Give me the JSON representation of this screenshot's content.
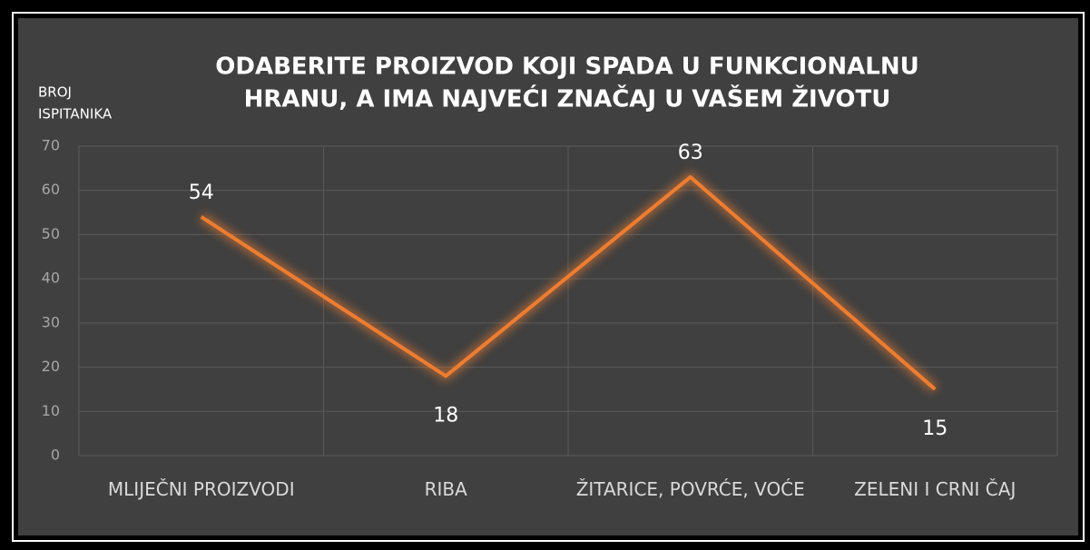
{
  "chart_data": {
    "type": "line",
    "title": [
      "ODABERITE PROIZVOD KOJI SPADA U FUNKCIONALNU",
      "HRANU, A IMA NAJVEĆI ZNAČAJ U VAŠEM ŽIVOTU"
    ],
    "y_label": [
      "BROJ",
      "ISPITANIKA"
    ],
    "categories": [
      "MLIJEČNI PROIZVODI",
      "RIBA",
      "ŽITARICE, POVRĆE, VOĆE",
      "ZELENI I CRNI ČAJ"
    ],
    "values": [
      54,
      18,
      63,
      15
    ],
    "color": "#ed7d31",
    "ylim": [
      0,
      70
    ],
    "yticks": [
      0,
      10,
      20,
      30,
      40,
      50,
      60,
      70
    ],
    "grid": true
  }
}
